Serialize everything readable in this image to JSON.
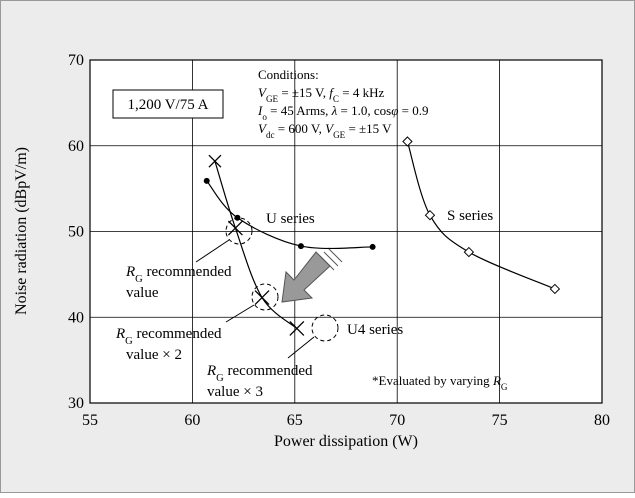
{
  "chart_data": {
    "type": "line",
    "xlabel": "Power dissipation (W)",
    "ylabel": "Noise radiation (dBpV/m)",
    "xlim": [
      55,
      80
    ],
    "xticks": [
      55,
      60,
      65,
      70,
      75,
      80
    ],
    "ylim": [
      30,
      70
    ],
    "yticks": [
      30,
      40,
      50,
      60,
      70
    ],
    "grid": true,
    "series": [
      {
        "name": "U series",
        "color": "#000000",
        "marker": "dot",
        "x": [
          60.7,
          62.2,
          65.3,
          68.8
        ],
        "values": [
          55.9,
          51.6,
          48.3,
          48.2
        ]
      },
      {
        "name": "U4 series",
        "color": "#000000",
        "marker": "x",
        "x": [
          61.1,
          62.1,
          63.4,
          65.1
        ],
        "values": [
          58.2,
          50.4,
          42.3,
          38.7
        ]
      },
      {
        "name": "S series",
        "color": "#000000",
        "marker": "diamond",
        "x": [
          70.5,
          71.6,
          73.5,
          77.7
        ],
        "values": [
          60.5,
          51.9,
          47.6,
          43.3
        ]
      }
    ],
    "annotations": [
      {
        "runs": [
          {
            "text": "1,200 V/75 A"
          }
        ]
      },
      {
        "runs": [
          {
            "text": "Conditions:"
          }
        ]
      },
      {
        "runs": [
          {
            "text": "V",
            "italic": true
          },
          {
            "text": "GE",
            "sub": true
          },
          {
            "text": " = ±15 V, "
          },
          {
            "text": "f",
            "italic": true
          },
          {
            "text": "C",
            "sub": true
          },
          {
            "text": " = 4 kHz"
          }
        ]
      },
      {
        "runs": [
          {
            "text": "I",
            "italic": true
          },
          {
            "text": "o",
            "sub": true
          },
          {
            "text": " = 45 Arms, "
          },
          {
            "text": "λ",
            "italic": true
          },
          {
            "text": " = 1.0, cos"
          },
          {
            "text": "φ",
            "italic": true
          },
          {
            "text": " = 0.9"
          }
        ]
      },
      {
        "runs": [
          {
            "text": "V",
            "italic": true
          },
          {
            "text": "dc",
            "sub": true
          },
          {
            "text": " = 600 V, "
          },
          {
            "text": "V",
            "italic": true
          },
          {
            "text": "GE",
            "sub": true
          },
          {
            "text": " = ±15 V"
          }
        ]
      },
      {
        "runs": [
          {
            "text": "R",
            "italic": true
          },
          {
            "text": "G",
            "sub": true
          },
          {
            "text": " recommended"
          }
        ]
      },
      {
        "runs": [
          {
            "text": "value"
          }
        ]
      },
      {
        "runs": [
          {
            "text": "R",
            "italic": true
          },
          {
            "text": "G",
            "sub": true
          },
          {
            "text": " recommended"
          }
        ]
      },
      {
        "runs": [
          {
            "text": "value × 2"
          }
        ]
      },
      {
        "runs": [
          {
            "text": "R",
            "italic": true
          },
          {
            "text": "G",
            "sub": true
          },
          {
            "text": " recommended"
          }
        ]
      },
      {
        "runs": [
          {
            "text": "value × 3"
          }
        ]
      },
      {
        "runs": [
          {
            "text": "*Evaluated by varying "
          },
          {
            "text": "R",
            "italic": true
          },
          {
            "text": "G",
            "sub": true
          }
        ]
      }
    ]
  }
}
